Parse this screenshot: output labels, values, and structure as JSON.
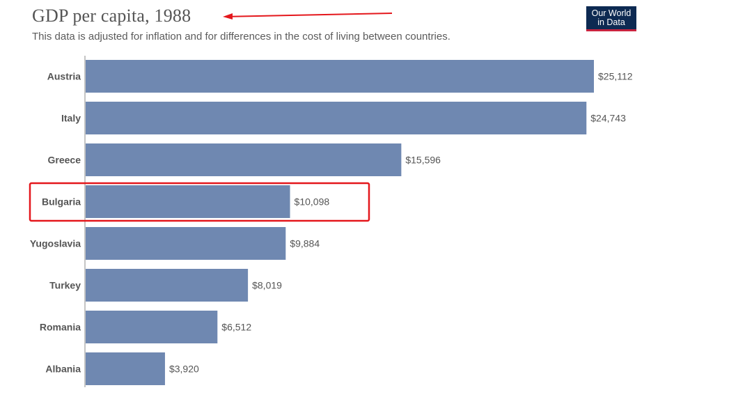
{
  "header": {
    "title": "GDP per capita, 1988",
    "subtitle": "This data is adjusted for inflation and for differences in the cost of living between countries."
  },
  "logo": {
    "line1": "Our World",
    "line2": "in Data"
  },
  "colors": {
    "bar": "#6f88b1",
    "annotation": "#e4171c",
    "logo_bg": "#0d2a52",
    "logo_accent": "#c8233f"
  },
  "chart_data": {
    "type": "bar",
    "orientation": "horizontal",
    "categories": [
      "Austria",
      "Italy",
      "Greece",
      "Bulgaria",
      "Yugoslavia",
      "Turkey",
      "Romania",
      "Albania"
    ],
    "values": [
      25112,
      24743,
      15596,
      10098,
      9884,
      8019,
      6512,
      3920
    ],
    "value_labels": [
      "$25,112",
      "$24,743",
      "$15,596",
      "$10,098",
      "$9,884",
      "$8,019",
      "$6,512",
      "$3,920"
    ],
    "highlighted_category": "Bulgaria",
    "grid": false
  }
}
